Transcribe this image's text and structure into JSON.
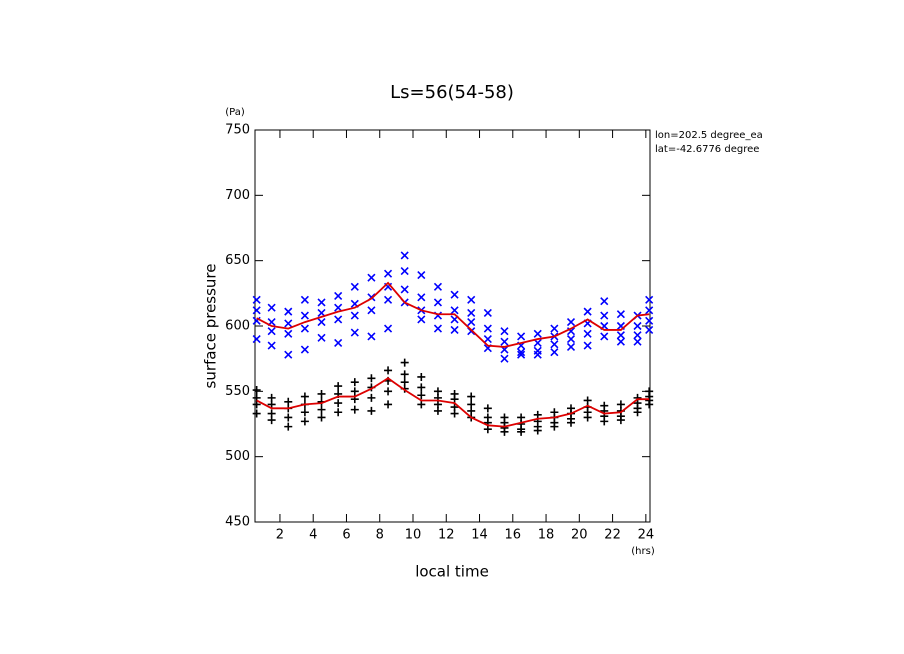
{
  "chart_data": {
    "type": "scatter",
    "title": "Ls=56(54-58)",
    "y_label": "surface pressure",
    "x_label": "local time",
    "y_unit": "(Pa)",
    "x_unit": "(hrs)",
    "annotations": [
      "lon=202.5 degree_ea",
      "lat=-42.6776 degree"
    ],
    "xlim": [
      0.5,
      24.25
    ],
    "ylim": [
      450,
      750
    ],
    "xticks": [
      2,
      4,
      6,
      8,
      10,
      12,
      14,
      16,
      18,
      20,
      22,
      24
    ],
    "yticks": [
      450,
      500,
      550,
      600,
      650,
      700,
      750
    ],
    "x": [
      0.6,
      1.5,
      2.5,
      3.5,
      4.5,
      5.5,
      6.5,
      7.5,
      8.5,
      9.5,
      10.5,
      11.5,
      12.5,
      13.5,
      14.5,
      15.5,
      16.5,
      17.5,
      18.5,
      19.5,
      20.5,
      21.5,
      22.5,
      23.5,
      24.2
    ],
    "series": [
      {
        "type": "scatter",
        "marker": "x",
        "color": "#0000ff",
        "values": [
          [
            620,
            612,
            604,
            590
          ],
          [
            614,
            603,
            596,
            585
          ],
          [
            611,
            602,
            594,
            578
          ],
          [
            620,
            608,
            598,
            582
          ],
          [
            618,
            610,
            603,
            591
          ],
          [
            623,
            614,
            605,
            587
          ],
          [
            630,
            617,
            608,
            595
          ],
          [
            637,
            622,
            612,
            592
          ],
          [
            640,
            630,
            620,
            598
          ],
          [
            654,
            642,
            628,
            618
          ],
          [
            639,
            622,
            612,
            605
          ],
          [
            630,
            618,
            608,
            598
          ],
          [
            624,
            612,
            605,
            597
          ],
          [
            620,
            610,
            603,
            596
          ],
          [
            610,
            598,
            590,
            583
          ],
          [
            596,
            588,
            582,
            575
          ],
          [
            592,
            585,
            580,
            578
          ],
          [
            594,
            587,
            581,
            578
          ],
          [
            598,
            592,
            586,
            580
          ],
          [
            603,
            596,
            590,
            584
          ],
          [
            611,
            602,
            594,
            585
          ],
          [
            619,
            608,
            600,
            592
          ],
          [
            609,
            600,
            593,
            588
          ],
          [
            608,
            600,
            593,
            588
          ],
          [
            620,
            612,
            604,
            597
          ]
        ]
      },
      {
        "type": "scatter",
        "marker": "+",
        "color": "#000000",
        "values": [
          [
            551,
            545,
            540,
            533
          ],
          [
            545,
            540,
            533,
            528
          ],
          [
            542,
            537,
            530,
            523
          ],
          [
            546,
            540,
            534,
            527
          ],
          [
            548,
            542,
            536,
            530
          ],
          [
            554,
            548,
            541,
            534
          ],
          [
            557,
            550,
            544,
            536
          ],
          [
            560,
            553,
            545,
            535
          ],
          [
            566,
            558,
            550,
            540
          ],
          [
            572,
            563,
            557,
            552
          ],
          [
            561,
            553,
            547,
            540
          ],
          [
            550,
            545,
            540,
            535
          ],
          [
            548,
            544,
            538,
            533
          ],
          [
            546,
            540,
            535,
            530
          ],
          [
            537,
            530,
            526,
            521
          ],
          [
            530,
            526,
            522,
            519
          ],
          [
            530,
            525,
            521,
            519
          ],
          [
            532,
            527,
            523,
            520
          ],
          [
            534,
            530,
            526,
            523
          ],
          [
            537,
            533,
            529,
            526
          ],
          [
            543,
            538,
            534,
            530
          ],
          [
            539,
            535,
            531,
            527
          ],
          [
            540,
            535,
            531,
            528
          ],
          [
            545,
            541,
            537,
            534
          ],
          [
            550,
            546,
            543,
            540
          ]
        ]
      },
      {
        "type": "line",
        "color": "#dd0000",
        "values": [
          606,
          600,
          598,
          603,
          607,
          611,
          614,
          621,
          633,
          618,
          612,
          609,
          609,
          597,
          585,
          584,
          587,
          590,
          592,
          598,
          605,
          597,
          597,
          608,
          609
        ]
      },
      {
        "type": "line",
        "color": "#dd0000",
        "values": [
          543,
          537,
          537,
          540,
          541,
          546,
          546,
          552,
          560,
          551,
          543,
          543,
          541,
          530,
          524,
          523,
          526,
          529,
          530,
          533,
          539,
          533,
          534,
          544,
          544
        ]
      }
    ]
  }
}
